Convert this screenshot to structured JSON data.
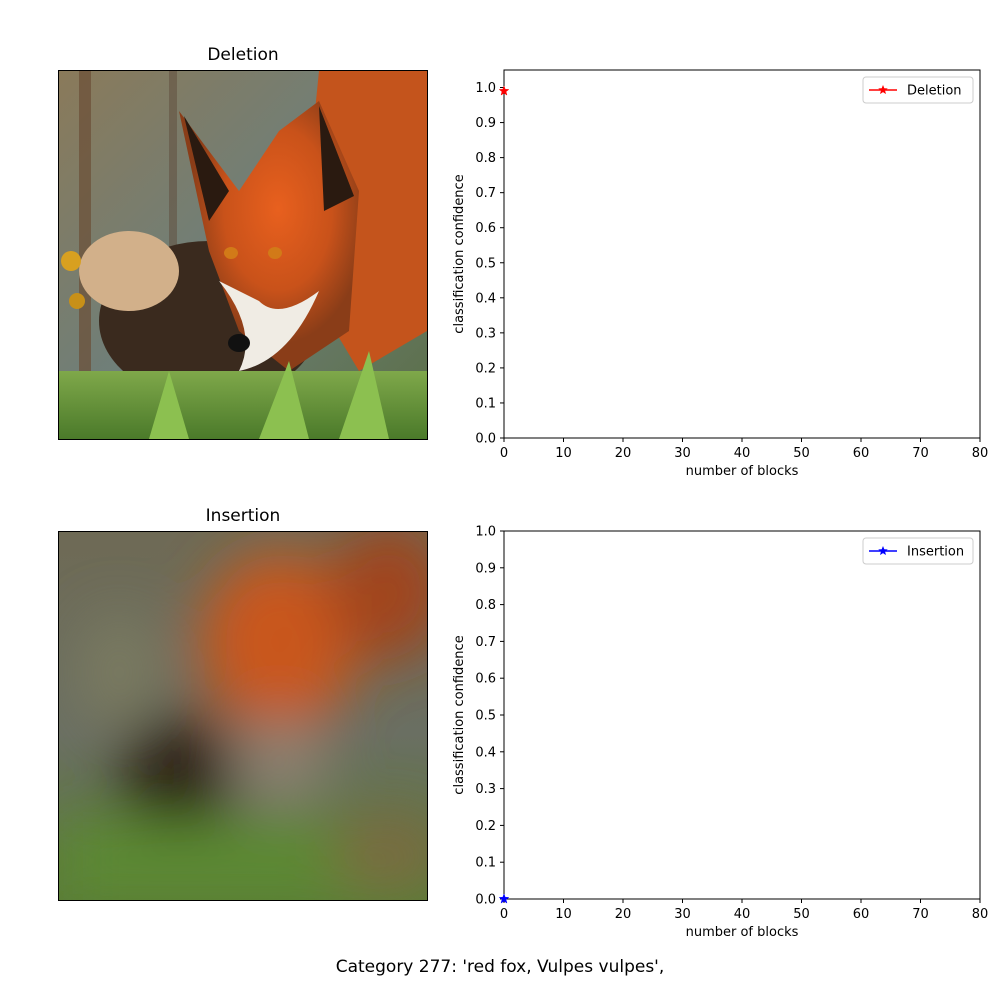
{
  "panels": {
    "deletion_title": "Deletion",
    "insertion_title": "Insertion"
  },
  "caption": "Category  277: 'red fox, Vulpes vulpes',",
  "chart_data": [
    {
      "type": "line",
      "xlabel": "number of blocks",
      "ylabel": "classification confidence",
      "xlim": [
        0,
        80
      ],
      "ylim": [
        0,
        1.05
      ],
      "xticks": [
        0,
        10,
        20,
        30,
        40,
        50,
        60,
        70,
        80
      ],
      "yticks": [
        0.0,
        0.1,
        0.2,
        0.3,
        0.4,
        0.5,
        0.6,
        0.7,
        0.8,
        0.9,
        1.0
      ],
      "ytick_labels": [
        "0.0",
        "0.1",
        "0.2",
        "0.3",
        "0.4",
        "0.5",
        "0.6",
        "0.7",
        "0.8",
        "0.9",
        "1.0"
      ],
      "grid": false,
      "legend_position": "top-right",
      "series": [
        {
          "name": "Deletion",
          "color": "#ff0000",
          "marker": "star",
          "x": [
            0
          ],
          "y": [
            0.99
          ]
        }
      ]
    },
    {
      "type": "line",
      "xlabel": "number of blocks",
      "ylabel": "classification confidence",
      "xlim": [
        0,
        80
      ],
      "ylim": [
        0,
        1.0
      ],
      "xticks": [
        0,
        10,
        20,
        30,
        40,
        50,
        60,
        70,
        80
      ],
      "yticks": [
        0.0,
        0.1,
        0.2,
        0.3,
        0.4,
        0.5,
        0.6,
        0.7,
        0.8,
        0.9,
        1.0
      ],
      "ytick_labels": [
        "0.0",
        "0.1",
        "0.2",
        "0.3",
        "0.4",
        "0.5",
        "0.6",
        "0.7",
        "0.8",
        "0.9",
        "1.0"
      ],
      "grid": false,
      "legend_position": "top-right",
      "series": [
        {
          "name": "Insertion",
          "color": "#0000ff",
          "marker": "star",
          "x": [
            0
          ],
          "y": [
            0.0
          ]
        }
      ]
    }
  ]
}
